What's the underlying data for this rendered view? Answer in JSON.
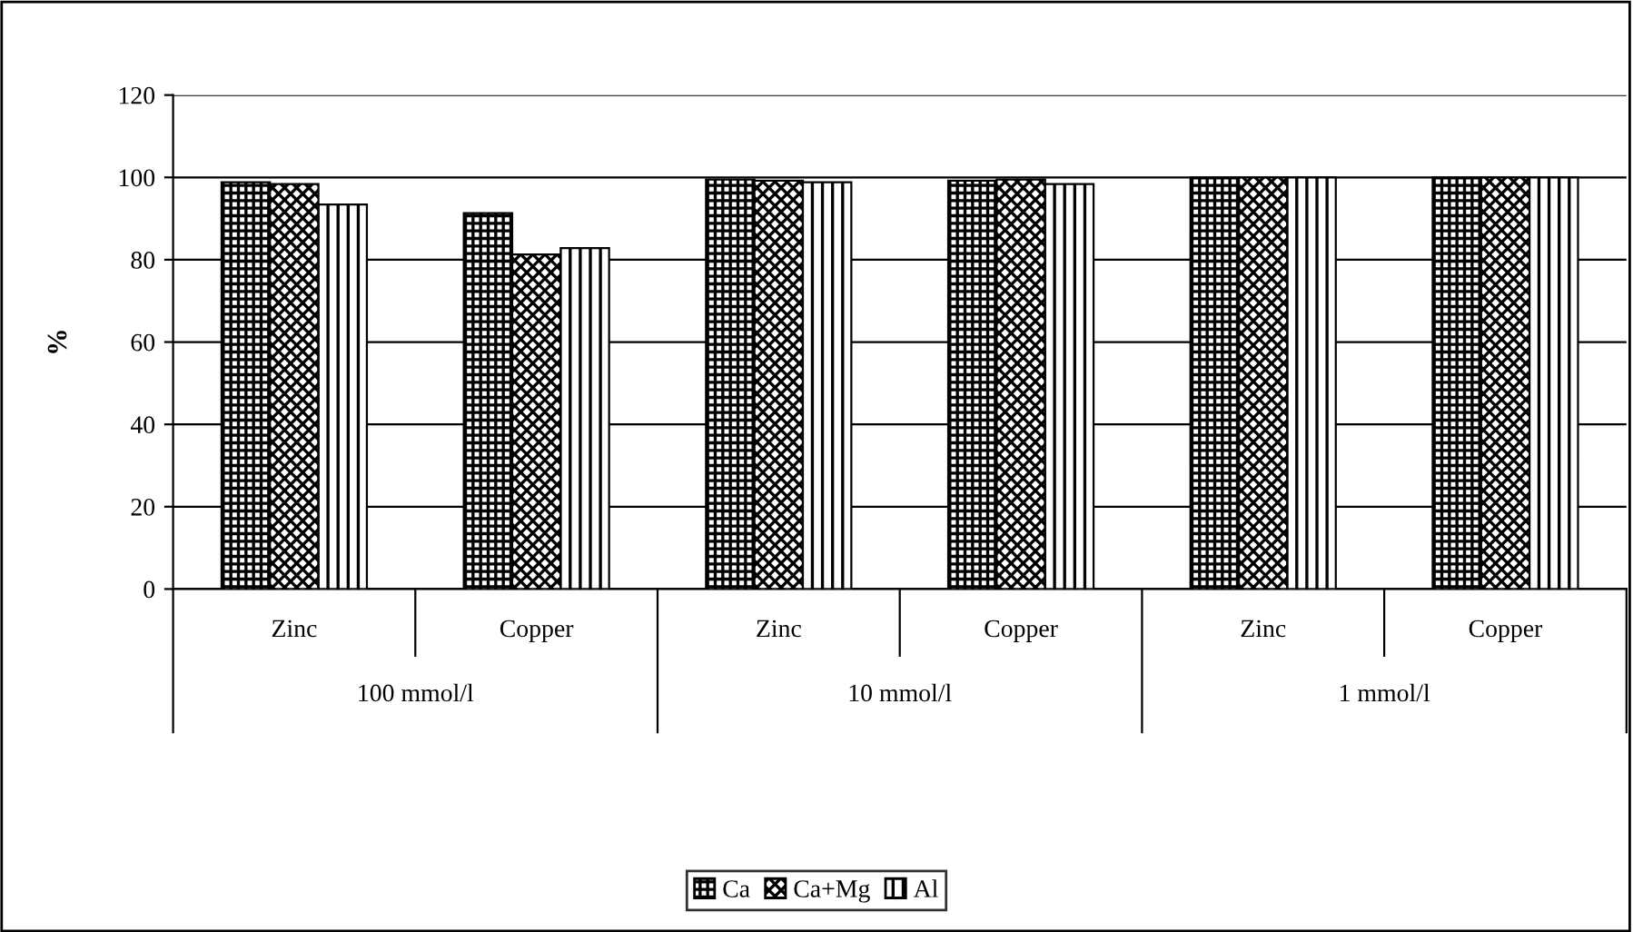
{
  "chart_data": {
    "type": "bar",
    "ylabel": "%",
    "categories": [
      "Zinc",
      "Copper",
      "Zinc",
      "Copper",
      "Zinc",
      "Copper"
    ],
    "annotations": [
      "100 mmol/l",
      "10 mmol/l",
      "1 mmol/l"
    ],
    "series": [
      {
        "name": "Ca",
        "color": "#000000",
        "values": [
          98.8,
          91.3,
          99.5,
          99.2,
          100,
          100
        ]
      },
      {
        "name": "Ca+Mg",
        "color": "#000000",
        "values": [
          98.4,
          81.3,
          99.2,
          99.5,
          100,
          100
        ]
      },
      {
        "name": "Al",
        "color": "#000000",
        "values": [
          93.4,
          82.8,
          98.8,
          98.4,
          100,
          100
        ]
      }
    ],
    "ylim": [
      0,
      120
    ],
    "yticks": [
      0,
      20,
      40,
      60,
      80,
      100,
      120
    ],
    "grid": "y",
    "legend": "bottom"
  }
}
